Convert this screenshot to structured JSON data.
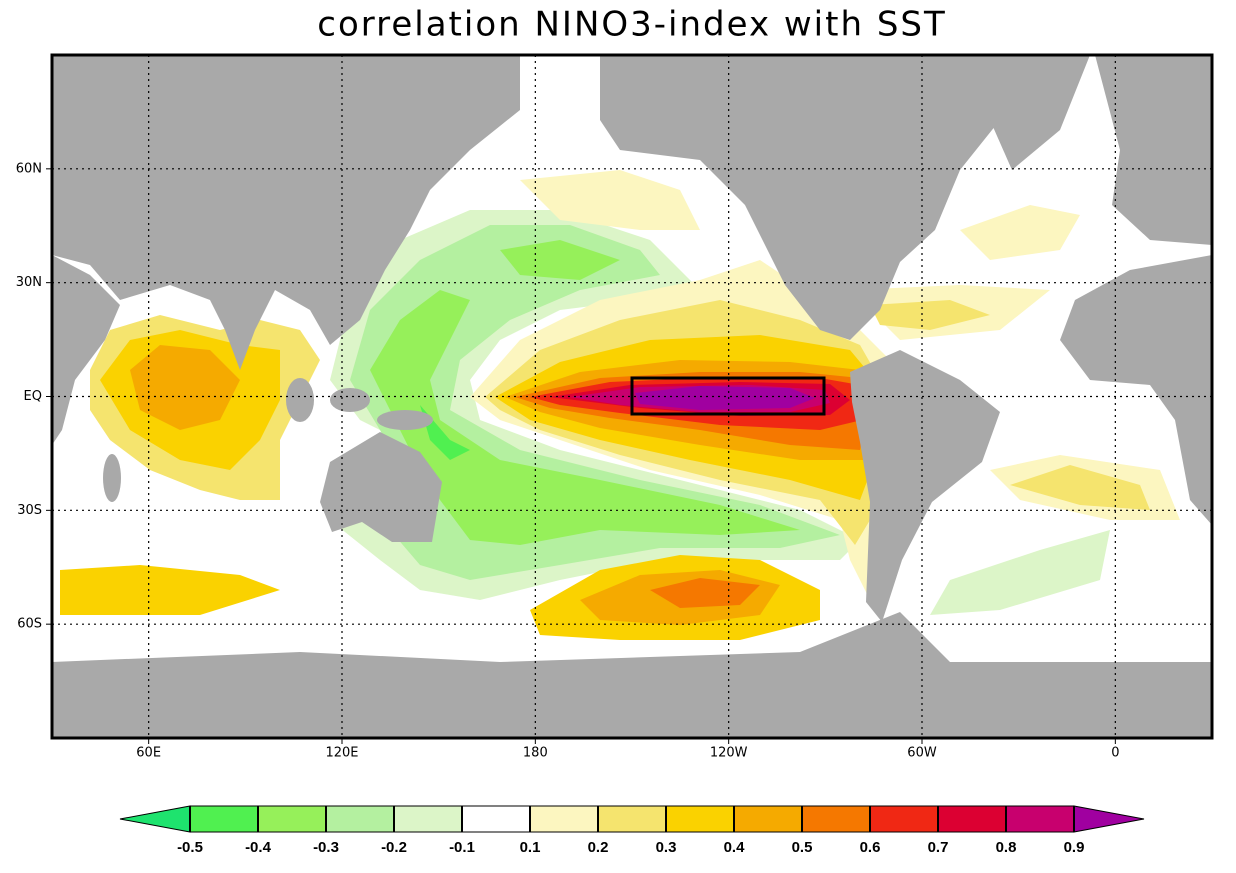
{
  "chart_data": {
    "type": "map",
    "title": "correlation NINO3-index with SST",
    "xlim": [
      30,
      390
    ],
    "ylim": [
      -90,
      90
    ],
    "xticks": [
      {
        "value": 60,
        "label": "60E"
      },
      {
        "value": 120,
        "label": "120E"
      },
      180,
      {
        "value": 240,
        "label": "120W"
      },
      {
        "value": 300,
        "label": "60W"
      },
      {
        "value": 360,
        "label": "0"
      }
    ],
    "yticks": [
      {
        "value": 60,
        "label": "60N"
      },
      {
        "value": 30,
        "label": "30N"
      },
      {
        "value": 0,
        "label": "EQ"
      },
      {
        "value": -30,
        "label": "30S"
      },
      {
        "value": -60,
        "label": "60S"
      }
    ],
    "grid": true,
    "colorbar": {
      "levels": [
        -0.5,
        -0.4,
        -0.3,
        -0.2,
        -0.1,
        0.1,
        0.2,
        0.3,
        0.4,
        0.5,
        0.6,
        0.7,
        0.8,
        0.9
      ],
      "colors": [
        "#1ee36e",
        "#50f050",
        "#96f05a",
        "#b4f0a0",
        "#dcf5c8",
        "#ffffff",
        "#fcf6c0",
        "#f5e46e",
        "#fad200",
        "#f5aa00",
        "#f57800",
        "#f02814",
        "#dc0032",
        "#c8006e",
        "#a000a0"
      ]
    }
  }
}
